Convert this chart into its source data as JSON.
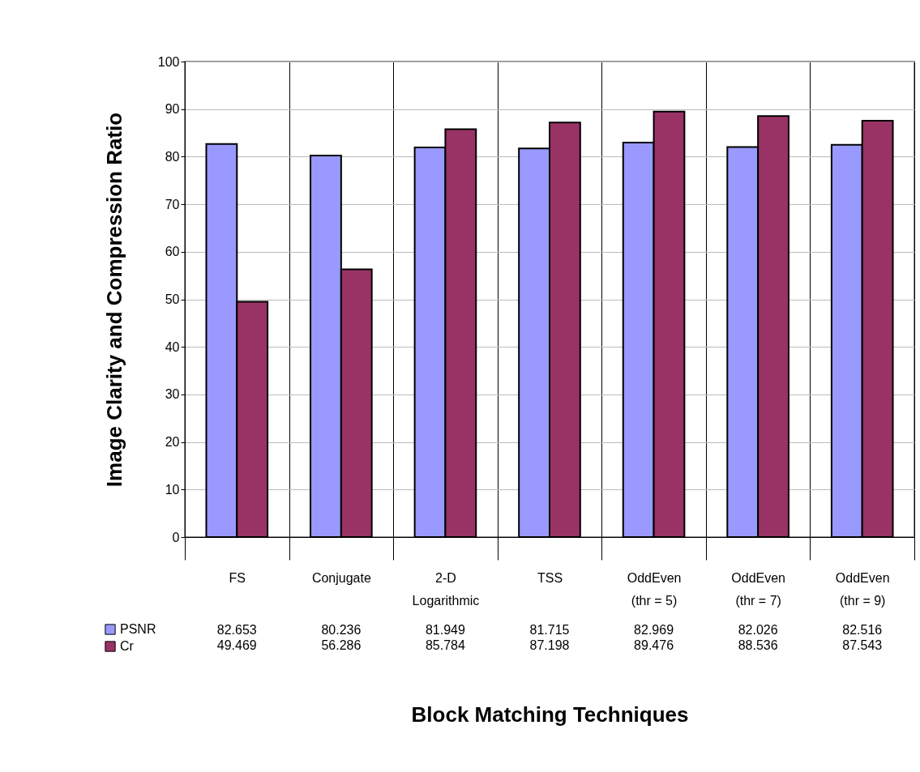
{
  "chart_data": {
    "type": "bar",
    "xlabel": "Block Matching Techniques",
    "ylabel": "Image Clarity and Compression Ratio",
    "categories": [
      "FS",
      "Conjugate",
      "2-D Logarithmic",
      "TSS",
      "OddEven (thr = 5)",
      "OddEven (thr = 7)",
      "OddEven (thr = 9)"
    ],
    "series": [
      {
        "name": "PSNR",
        "color": "#9999ff",
        "values": [
          82.653,
          80.236,
          81.949,
          81.715,
          82.969,
          82.026,
          82.516
        ]
      },
      {
        "name": "Cr",
        "color": "#993366",
        "values": [
          49.469,
          56.286,
          85.784,
          87.198,
          89.476,
          88.536,
          87.543
        ]
      }
    ],
    "ylim": [
      0,
      100
    ],
    "yticks": [
      0,
      10,
      20,
      30,
      40,
      50,
      60,
      70,
      80,
      90,
      100
    ],
    "grid": "y",
    "legend": "bottom left",
    "data_labels": true
  }
}
